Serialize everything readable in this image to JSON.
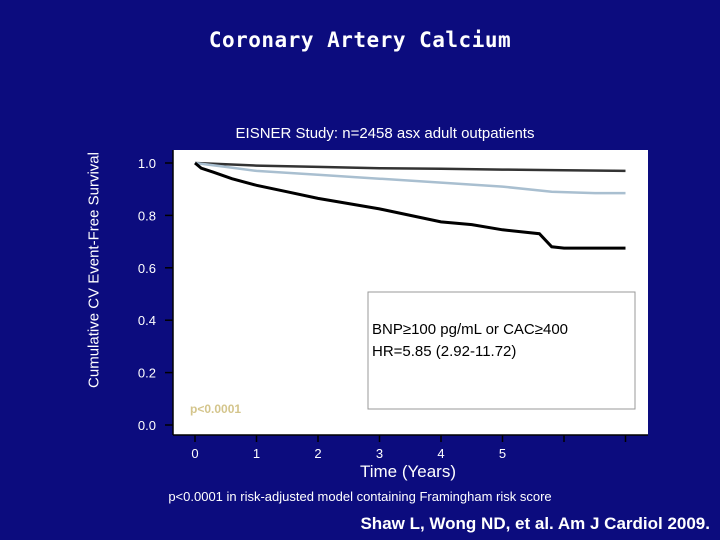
{
  "slide": {
    "title": "Coronary Artery Calcium",
    "footnote": "p<0.0001 in risk-adjusted model containing Framingham risk score",
    "citation": "Shaw L, Wong ND, et al. Am J Cardiol 2009."
  },
  "chart_data": {
    "type": "line",
    "title": "EISNER Study: n=2458 asx adult outpatients",
    "xlabel": "Time (Years)",
    "ylabel": "Cumulative CV Event-Free Survival",
    "xlim": [
      0,
      7
    ],
    "ylim": [
      0,
      1.0
    ],
    "x_ticks": [
      "0",
      "1",
      "2",
      "3",
      "4",
      "5"
    ],
    "y_ticks": [
      "0.0",
      "0.2",
      "0.4",
      "0.6",
      "0.8",
      "1.0"
    ],
    "grid": false,
    "series": [
      {
        "color": "#333333",
        "x": [
          0,
          0.5,
          1,
          2,
          3,
          4,
          5,
          6,
          7
        ],
        "y": [
          1.0,
          0.995,
          0.99,
          0.985,
          0.98,
          0.978,
          0.975,
          0.972,
          0.97
        ]
      },
      {
        "color": "#a9bfd0",
        "x": [
          0,
          0.5,
          1,
          2,
          3,
          4,
          5,
          5.8,
          6.5,
          7
        ],
        "y": [
          1.0,
          0.985,
          0.97,
          0.955,
          0.94,
          0.925,
          0.91,
          0.89,
          0.885,
          0.885
        ]
      },
      {
        "color": "#000000",
        "x": [
          0,
          0.1,
          0.3,
          0.6,
          1,
          1.5,
          2,
          2.5,
          3,
          3.5,
          4,
          4.5,
          5,
          5.6,
          5.8,
          6,
          6.5,
          7
        ],
        "y": [
          1.0,
          0.98,
          0.965,
          0.94,
          0.915,
          0.89,
          0.865,
          0.845,
          0.825,
          0.8,
          0.775,
          0.765,
          0.745,
          0.73,
          0.68,
          0.675,
          0.675,
          0.675
        ]
      }
    ],
    "annotations": {
      "legend_text": [
        "BNP≥100 pg/mL or CAC≥400",
        "HR=5.85 (2.92-11.72)"
      ],
      "pvalue": "p<0.0001",
      "pvalue_color": "#d4c58c"
    }
  }
}
